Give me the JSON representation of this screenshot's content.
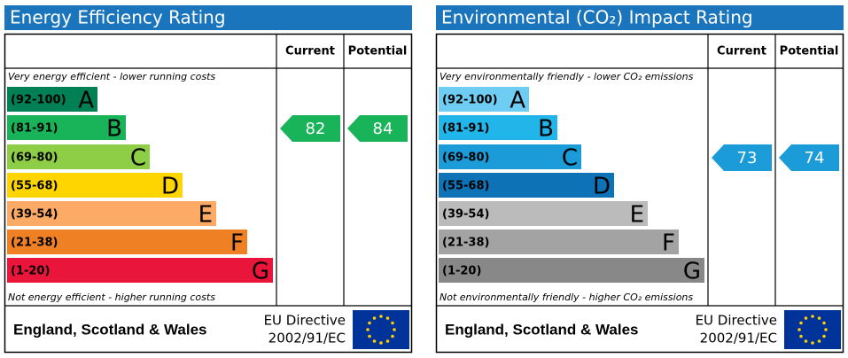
{
  "panels": [
    {
      "title": "Energy Efficiency Rating",
      "headers": [
        "Current",
        "Potential"
      ],
      "top_note": "Very energy efficient - lower running costs",
      "bands": [
        {
          "range": "(92-100)",
          "letter": "A",
          "color": "#008054"
        },
        {
          "range": "(81-91)",
          "letter": "B",
          "color": "#19b459"
        },
        {
          "range": "(69-80)",
          "letter": "C",
          "color": "#8dce46"
        },
        {
          "range": "(55-68)",
          "letter": "D",
          "color": "#ffd500"
        },
        {
          "range": "(39-54)",
          "letter": "E",
          "color": "#fcaa65"
        },
        {
          "range": "(21-38)",
          "letter": "F",
          "color": "#ef8023"
        },
        {
          "range": "(1-20)",
          "letter": "G",
          "color": "#e9153b"
        }
      ],
      "bottom_note": "Not energy efficient - higher running costs",
      "current": 82,
      "potential": 84,
      "footer": {
        "region": "England, Scotland & Wales",
        "directive": [
          "EU Directive",
          "2002/91/EC"
        ]
      }
    },
    {
      "title": "Environmental (CO₂) Impact Rating",
      "headers": [
        "Current",
        "Potential"
      ],
      "top_note": "Very environmentally friendly - lower CO₂ emissions",
      "bands": [
        {
          "range": "(92-100)",
          "letter": "A",
          "color": "#6fcdf3"
        },
        {
          "range": "(81-91)",
          "letter": "B",
          "color": "#22b5e9"
        },
        {
          "range": "(69-80)",
          "letter": "C",
          "color": "#1b9bd8"
        },
        {
          "range": "(55-68)",
          "letter": "D",
          "color": "#0e72b7"
        },
        {
          "range": "(39-54)",
          "letter": "E",
          "color": "#bbbbbb"
        },
        {
          "range": "(21-38)",
          "letter": "F",
          "color": "#a3a3a3"
        },
        {
          "range": "(1-20)",
          "letter": "G",
          "color": "#888888"
        }
      ],
      "bottom_note": "Not environmentally friendly - higher CO₂ emissions",
      "current": 73,
      "potential": 74,
      "footer": {
        "region": "England, Scotland & Wales",
        "directive": [
          "EU Directive",
          "2002/91/EC"
        ]
      }
    }
  ]
}
